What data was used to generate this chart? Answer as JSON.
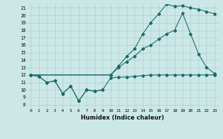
{
  "xlabel": "Humidex (Indice chaleur)",
  "bg_color": "#cce8e6",
  "grid_color": "#aacfcc",
  "line_color": "#1a6b6b",
  "xlim": [
    -0.5,
    23.5
  ],
  "ylim": [
    7.5,
    21.5
  ],
  "xticks": [
    0,
    1,
    2,
    3,
    4,
    5,
    6,
    7,
    8,
    9,
    10,
    11,
    12,
    13,
    14,
    15,
    16,
    17,
    18,
    19,
    20,
    21,
    22,
    23
  ],
  "yticks": [
    8,
    9,
    10,
    11,
    12,
    13,
    14,
    15,
    16,
    17,
    18,
    19,
    20,
    21
  ],
  "curve_zigzag_x": [
    0,
    1,
    2,
    3,
    4,
    5,
    6,
    7,
    8,
    9
  ],
  "curve_zigzag_y": [
    12,
    11.8,
    11.0,
    11.2,
    9.5,
    10.5,
    8.5,
    10.0,
    9.8,
    10.0
  ],
  "curve_flat_x": [
    0,
    1,
    2,
    3,
    4,
    5,
    6,
    7,
    8,
    9,
    10,
    11,
    12,
    13,
    14,
    15,
    16,
    17,
    18,
    19,
    20,
    21,
    22,
    23
  ],
  "curve_flat_y": [
    12,
    11.8,
    11.0,
    11.2,
    9.5,
    10.5,
    8.5,
    10.0,
    9.8,
    10.0,
    11.6,
    11.7,
    11.7,
    11.8,
    11.9,
    12.0,
    12.0,
    12.0,
    12.0,
    12.0,
    12.0,
    12.0,
    12.0,
    12.0
  ],
  "curve_upper_x": [
    0,
    10,
    11,
    12,
    13,
    14,
    15,
    16,
    17,
    18,
    19,
    20,
    21,
    22,
    23
  ],
  "curve_upper_y": [
    12,
    12.0,
    13.2,
    14.5,
    15.5,
    17.5,
    19.0,
    20.2,
    21.5,
    21.2,
    21.3,
    21.0,
    20.8,
    20.5,
    20.2
  ],
  "curve_mid_x": [
    0,
    10,
    11,
    12,
    13,
    14,
    15,
    16,
    17,
    18,
    19,
    20,
    21,
    22,
    23
  ],
  "curve_mid_y": [
    12,
    12.0,
    13.0,
    13.8,
    14.5,
    15.5,
    16.0,
    16.8,
    17.5,
    18.0,
    20.3,
    17.5,
    14.8,
    13.0,
    12.2
  ]
}
